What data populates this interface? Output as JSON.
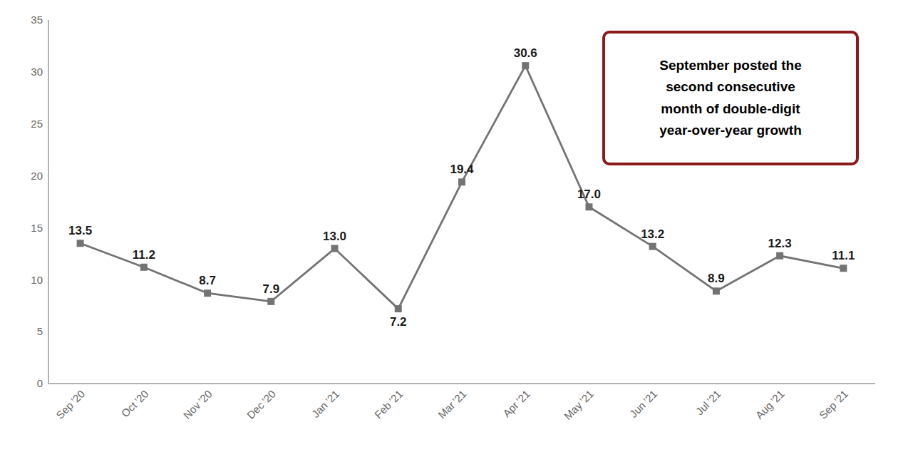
{
  "chart_data": {
    "type": "line",
    "categories": [
      "Sep ’20",
      "Oct ’20",
      "Nov ’20",
      "Dec ’20",
      "Jan ’21",
      "Feb ’21",
      "Mar ’21",
      "Apr ’21",
      "May ’21",
      "Jun ’21",
      "Jul ’21",
      "Aug ’21",
      "Sep ’21"
    ],
    "values": [
      13.5,
      11.2,
      8.7,
      7.9,
      13.0,
      7.2,
      19.4,
      30.6,
      17.0,
      13.2,
      8.9,
      12.3,
      11.1
    ],
    "value_labels": [
      "13.5",
      "11.2",
      "8.7",
      "7.9",
      "13.0",
      "7.2",
      "19.4",
      "30.6",
      "17.0",
      "13.2",
      "8.9",
      "12.3",
      "11.1"
    ],
    "data_labels": true,
    "color": "#737373",
    "marker": "square",
    "line_style": "solid",
    "ylim": [
      0,
      35
    ],
    "yticks": [
      0,
      5,
      10,
      15,
      20,
      25,
      30,
      35
    ],
    "grid": false,
    "annotation": "September posted the\nsecond consecutive\nmonth of double-digit\nyear-over-year growth"
  }
}
